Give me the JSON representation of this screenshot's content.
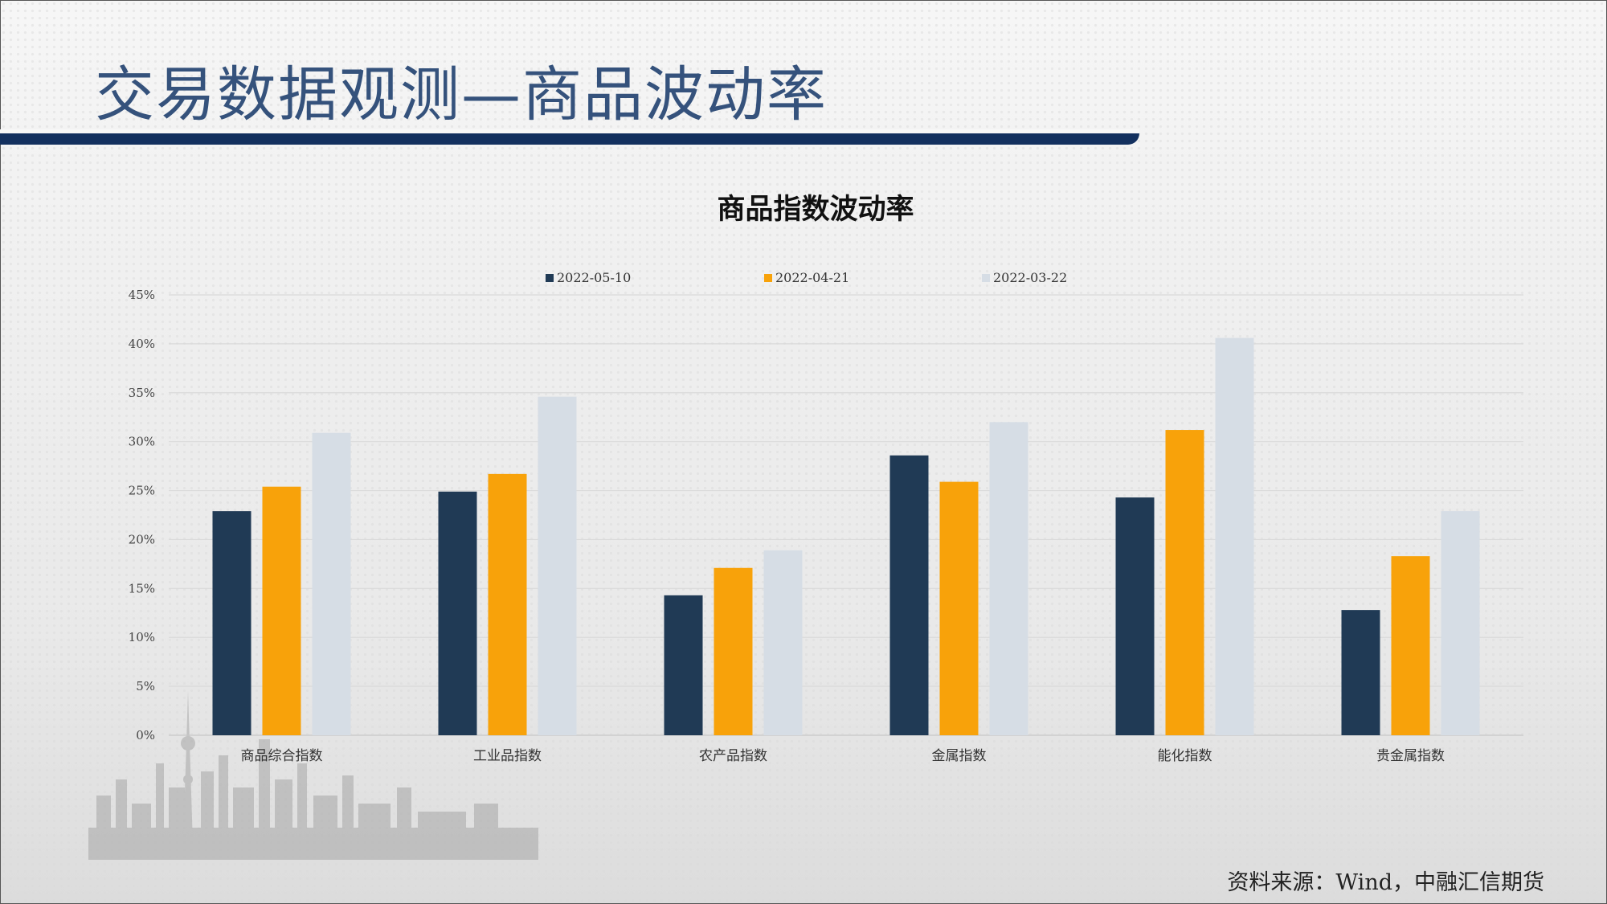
{
  "slide": {
    "title": "交易数据观测—商品波动率",
    "source": "资料来源：Wind，中融汇信期货"
  },
  "chart_data": {
    "type": "bar",
    "title": "商品指数波动率",
    "categories": [
      "商品综合指数",
      "工业品指数",
      "农产品指数",
      "金属指数",
      "能化指数",
      "贵金属指数"
    ],
    "series": [
      {
        "name": "2022-05-10",
        "color": "#203a55",
        "values": [
          22.9,
          24.9,
          14.3,
          28.6,
          24.3,
          12.8
        ]
      },
      {
        "name": "2022-04-21",
        "color": "#f8a20a",
        "values": [
          25.4,
          26.7,
          17.1,
          25.9,
          31.2,
          18.3
        ]
      },
      {
        "name": "2022-03-22",
        "color": "#d6dde5",
        "values": [
          30.9,
          34.6,
          18.9,
          32.0,
          40.6,
          22.9
        ]
      }
    ],
    "yticks": [
      "0%",
      "5%",
      "10%",
      "15%",
      "20%",
      "25%",
      "30%",
      "35%",
      "40%",
      "45%"
    ],
    "ylim": [
      0,
      45
    ],
    "grid": true,
    "legend_position": "top"
  }
}
